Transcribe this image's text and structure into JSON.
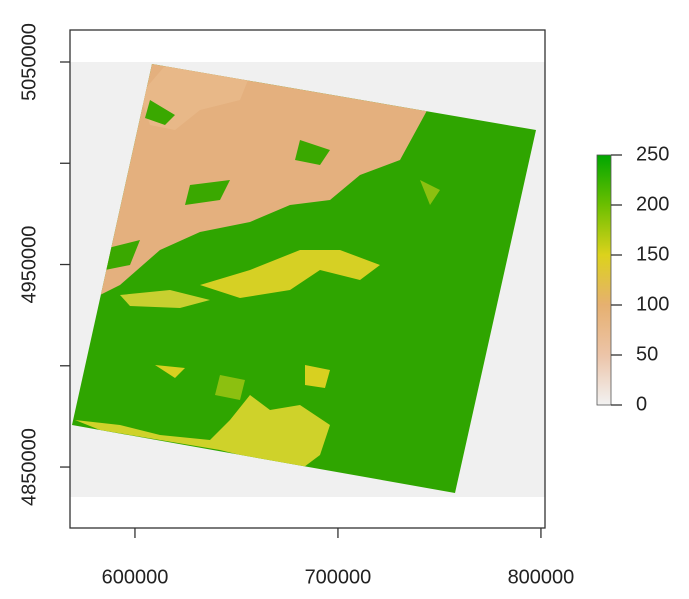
{
  "chart_data": {
    "type": "raster",
    "xlim": [
      568000,
      802000
    ],
    "ylim": [
      4819900,
      5065800
    ],
    "xticks": [
      600000,
      700000,
      800000
    ],
    "yticks": [
      {
        "value": 4850000,
        "label": "4850000"
      },
      {
        "value": 4900000,
        "label": null
      },
      {
        "value": 4950000,
        "label": "4950000"
      },
      {
        "value": 5000000,
        "label": null
      },
      {
        "value": 5050000,
        "label": "5050000"
      }
    ],
    "colorbar": {
      "lim": [
        0,
        250
      ],
      "ticks": [
        0,
        50,
        100,
        150,
        200,
        250
      ],
      "colors": [
        "#f2f2f2",
        "#ecc4a8",
        "#e6b070",
        "#dcd21c",
        "#6cbf00",
        "#00a600"
      ]
    }
  }
}
